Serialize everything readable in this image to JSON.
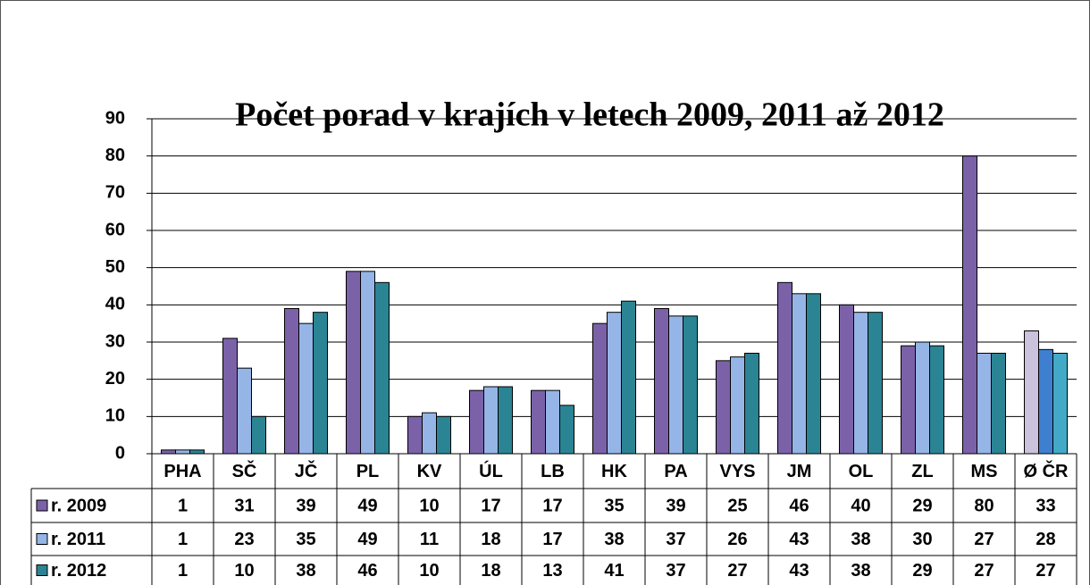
{
  "chart_data": {
    "type": "bar",
    "title": "Počet porad v krajích v letech 2009, 2011 až 2012",
    "categories": [
      "PHA",
      "SČ",
      "JČ",
      "PL",
      "KV",
      "ÚL",
      "LB",
      "HK",
      "PA",
      "VYS",
      "JM",
      "OL",
      "ZL",
      "MS",
      "Ø ČR"
    ],
    "series": [
      {
        "name": "r. 2009",
        "color": "#7b62a8",
        "colors": [
          "#7b62a8",
          "#7b62a8",
          "#7b62a8",
          "#7b62a8",
          "#7b62a8",
          "#7b62a8",
          "#7b62a8",
          "#7b62a8",
          "#7b62a8",
          "#7b62a8",
          "#7b62a8",
          "#7b62a8",
          "#7b62a8",
          "#7b62a8",
          "#cbc2de"
        ],
        "values": [
          1,
          31,
          39,
          49,
          10,
          17,
          17,
          35,
          39,
          25,
          46,
          40,
          29,
          80,
          33
        ]
      },
      {
        "name": "r. 2011",
        "color": "#95b5e6",
        "colors": [
          "#95b5e6",
          "#95b5e6",
          "#95b5e6",
          "#95b5e6",
          "#95b5e6",
          "#95b5e6",
          "#95b5e6",
          "#95b5e6",
          "#95b5e6",
          "#95b5e6",
          "#95b5e6",
          "#95b5e6",
          "#95b5e6",
          "#95b5e6",
          "#3f7fd0"
        ],
        "values": [
          1,
          23,
          35,
          49,
          11,
          18,
          17,
          38,
          37,
          26,
          43,
          38,
          30,
          27,
          28
        ]
      },
      {
        "name": "r. 2012",
        "color": "#2b8493",
        "colors": [
          "#2b8493",
          "#2b8493",
          "#2b8493",
          "#2b8493",
          "#2b8493",
          "#2b8493",
          "#2b8493",
          "#2b8493",
          "#2b8493",
          "#2b8493",
          "#2b8493",
          "#2b8493",
          "#2b8493",
          "#2b8493",
          "#42aac6"
        ],
        "values": [
          1,
          10,
          38,
          46,
          10,
          18,
          13,
          41,
          37,
          27,
          43,
          38,
          29,
          27,
          27
        ]
      }
    ],
    "ylim": [
      0,
      90
    ],
    "yticks": [
      0,
      10,
      20,
      30,
      40,
      50,
      60,
      70,
      80,
      90
    ],
    "grid": true
  }
}
